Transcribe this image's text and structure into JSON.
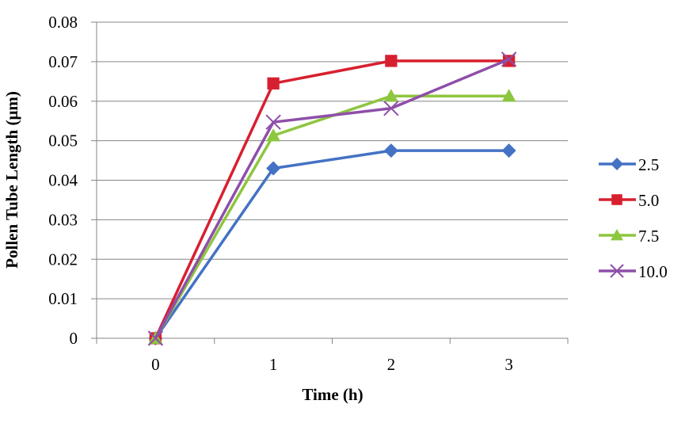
{
  "chart_data": {
    "type": "line",
    "title": "",
    "xlabel": "Time (h)",
    "ylabel": "Pollen Tube Length (μm)",
    "categories": [
      "0",
      "1",
      "2",
      "3"
    ],
    "ylim": [
      0,
      0.08
    ],
    "yticks": [
      "0",
      "0.01",
      "0.02",
      "0.03",
      "0.04",
      "0.05",
      "0.06",
      "0.07",
      "0.08"
    ],
    "grid": true,
    "legend_position": "right",
    "series": [
      {
        "name": "2.5",
        "values": [
          0,
          0.043,
          0.0475,
          0.0475
        ],
        "color": "#4472C4",
        "marker": "diamond"
      },
      {
        "name": "5.0",
        "values": [
          0,
          0.0645,
          0.0702,
          0.0702
        ],
        "color": "#D7202F",
        "marker": "square"
      },
      {
        "name": "7.5",
        "values": [
          0,
          0.0513,
          0.0613,
          0.0613
        ],
        "color": "#8DC63F",
        "marker": "triangle"
      },
      {
        "name": "10.0",
        "values": [
          0,
          0.0547,
          0.0582,
          0.0706
        ],
        "color": "#8E4FA9",
        "marker": "x"
      }
    ]
  }
}
